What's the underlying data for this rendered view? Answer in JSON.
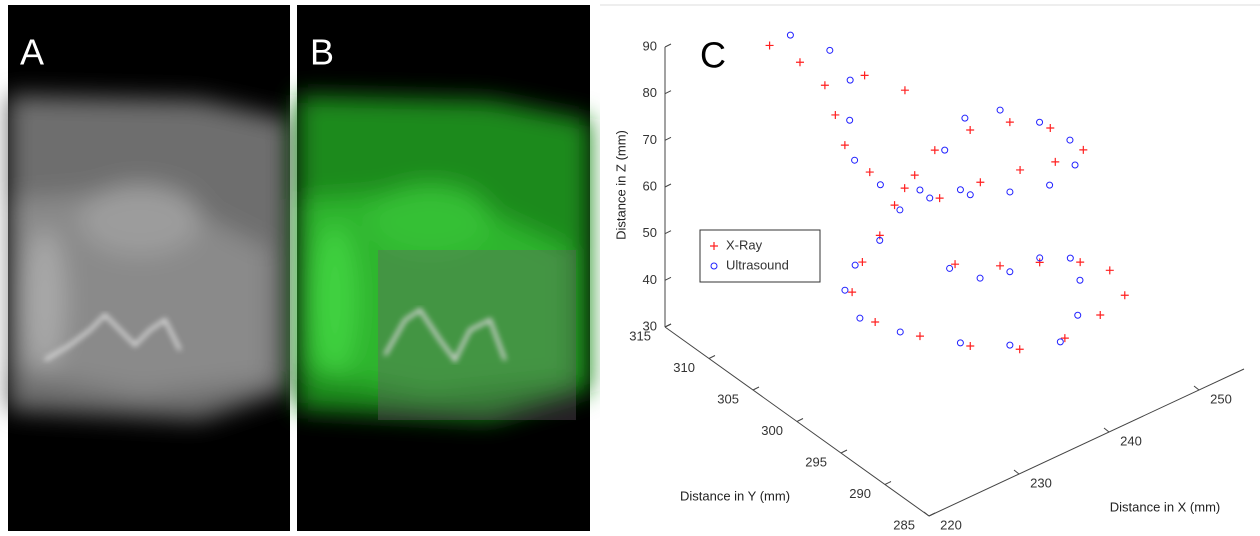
{
  "panels": [
    {
      "label": "A"
    },
    {
      "label": "B"
    }
  ],
  "chart_data": {
    "type": "scatter3d",
    "panel_label": "C",
    "x_label": "Distance in X (mm)",
    "y_label": "Distance in Y (mm)",
    "z_label": "Distance in Z (mm)",
    "xlim": [
      220,
      255
    ],
    "xticks": [
      220,
      230,
      240,
      250
    ],
    "ylim": [
      285,
      315
    ],
    "yticks": [
      285,
      290,
      295,
      300,
      305,
      310,
      315
    ],
    "zlim": [
      30,
      90
    ],
    "zticks": [
      30,
      40,
      50,
      60,
      70,
      80,
      90
    ],
    "legend": "left",
    "grid": false,
    "series": [
      {
        "name": "X-Ray",
        "color": "#ff2020",
        "marker": "+",
        "x": [
          228.1,
          230.5,
          231.9,
          236.9,
          231.3,
          230.6,
          231.8,
          234.7,
          238.0,
          243.5,
          248.6,
          253.0,
          256.8,
          254.4,
          250.3,
          245.4,
          240.3,
          236.6,
          232.6,
          229.2,
          225.7,
          222.8,
          223.6,
          227.7,
          232.7,
          238.0,
          243.7,
          249.0,
          252.9,
          252.7,
          249.9,
          245.4,
          240.7,
          235.9,
          240.5
        ],
        "y": [
          311.4,
          310.4,
          309.0,
          309.6,
          307.2,
          305.4,
          303.8,
          302.8,
          302.2,
          303.2,
          303.9,
          304.4,
          305.1,
          306.4,
          306.8,
          306.3,
          305.1,
          303.6,
          301.8,
          300.0,
          298.4,
          296.6,
          294.8,
          293.9,
          293.3,
          293.1,
          293.8,
          295.2,
          296.4,
          297.9,
          298.4,
          298.4,
          298.1,
          298.3,
          308.7
        ],
        "z": [
          87.9,
          83.5,
          79.2,
          76.0,
          75.8,
          72.4,
          67.7,
          63.0,
          58.7,
          55.8,
          52.9,
          50.0,
          48.2,
          53.3,
          57.7,
          61.1,
          63.0,
          63.0,
          62.6,
          61.6,
          61.2,
          59.8,
          55.1,
          49.6,
          43.8,
          38.6,
          34.9,
          33.2,
          32.3,
          35.8,
          39.4,
          43.4,
          47.3,
          51.7,
          70.8
        ]
      },
      {
        "name": "Ultrasound",
        "color": "#2020ff",
        "marker": "o",
        "x": [
          231.0,
          234.5,
          235.0,
          232.6,
          230.8,
          232.2,
          236.3,
          240.8,
          241.4,
          245.5,
          249.9,
          253.6,
          255.9,
          255.0,
          251.0,
          246.2,
          241.6,
          236.9,
          232.9,
          228.9,
          224.7,
          222.1,
          222.1,
          225.8,
          231.8,
          237.2,
          243.0,
          246.5,
          248.8,
          249.0,
          245.6,
          241.5,
          237.8,
          235.0
        ],
        "y": [
          312.0,
          311.1,
          309.3,
          306.9,
          304.5,
          303.0,
          302.7,
          302.7,
          305.1,
          307.0,
          307.5,
          306.8,
          305.7,
          304.2,
          303.0,
          302.6,
          302.4,
          302.2,
          301.5,
          299.7,
          298.2,
          296.7,
          295.0,
          294.2,
          293.5,
          293.4,
          293.6,
          295.2,
          297.3,
          298.6,
          298.6,
          297.8,
          297.4,
          298.0
        ],
        "z": [
          86.7,
          81.5,
          77.1,
          73.9,
          70.2,
          65.7,
          61.3,
          57.3,
          62.0,
          62.6,
          59.7,
          54.7,
          50.3,
          47.8,
          48.7,
          52.1,
          55.9,
          59.7,
          61.7,
          61.2,
          61.7,
          60.7,
          57.0,
          51.8,
          45.0,
          39.8,
          35.0,
          35.4,
          38.0,
          40.8,
          43.9,
          45.7,
          48.2,
          52.0
        ]
      }
    ]
  }
}
